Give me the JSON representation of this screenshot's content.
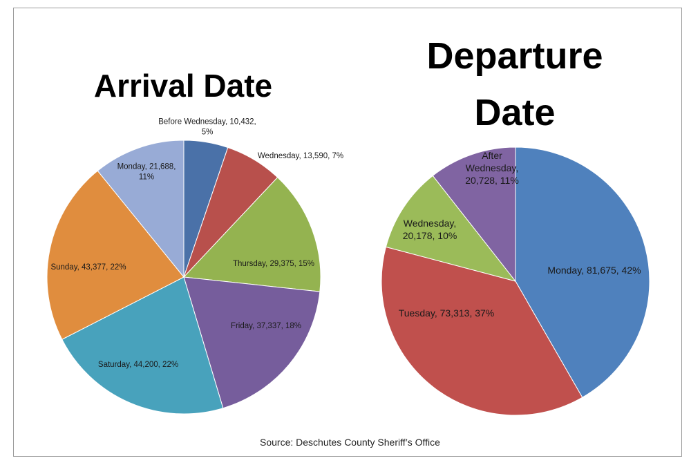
{
  "source": "Source: Deschutes County Sheriff’s Office",
  "chart_data": [
    {
      "type": "pie",
      "title": "Arrival Date",
      "slices": [
        {
          "label": "Before Wednesday",
          "value": 10432,
          "percent": "5%",
          "text": [
            "Before Wednesday, 10,432,",
            "5%"
          ],
          "color": "#4a71a8"
        },
        {
          "label": "Wednesday",
          "value": 13590,
          "percent": "7%",
          "text": [
            "Wednesday, 13,590, 7%"
          ],
          "color": "#b8504c"
        },
        {
          "label": "Thursday",
          "value": 29375,
          "percent": "15%",
          "text": [
            "Thursday, 29,375, 15%"
          ],
          "color": "#94b350"
        },
        {
          "label": "Friday",
          "value": 37337,
          "percent": "18%",
          "text": [
            "Friday, 37,337, 18%"
          ],
          "color": "#765d9c"
        },
        {
          "label": "Saturday",
          "value": 44200,
          "percent": "22%",
          "text": [
            "Saturday, 44,200, 22%"
          ],
          "color": "#48a2bc"
        },
        {
          "label": "Sunday",
          "value": 43377,
          "percent": "22%",
          "text": [
            "Sunday, 43,377, 22%"
          ],
          "color": "#e08d3e"
        },
        {
          "label": "Monday",
          "value": 21688,
          "percent": "11%",
          "text": [
            "Monday, 21,688,",
            "11%"
          ],
          "color": "#98abd6"
        }
      ]
    },
    {
      "type": "pie",
      "title": "Departure Date",
      "slices": [
        {
          "label": "Monday",
          "value": 81675,
          "percent": "42%",
          "text": [
            "Monday, 81,675, 42%"
          ],
          "color": "#4f81bd"
        },
        {
          "label": "Tuesday",
          "value": 73313,
          "percent": "37%",
          "text": [
            "Tuesday, 73,313, 37%"
          ],
          "color": "#c0504d"
        },
        {
          "label": "Wednesday",
          "value": 20178,
          "percent": "10%",
          "text": [
            "Wednesday,",
            "20,178, 10%"
          ],
          "color": "#9bbb59"
        },
        {
          "label": "After Wednesday",
          "value": 20728,
          "percent": "11%",
          "text": [
            "After",
            "Wednesday,",
            "20,728, 11%"
          ],
          "color": "#8064a2"
        }
      ]
    }
  ]
}
